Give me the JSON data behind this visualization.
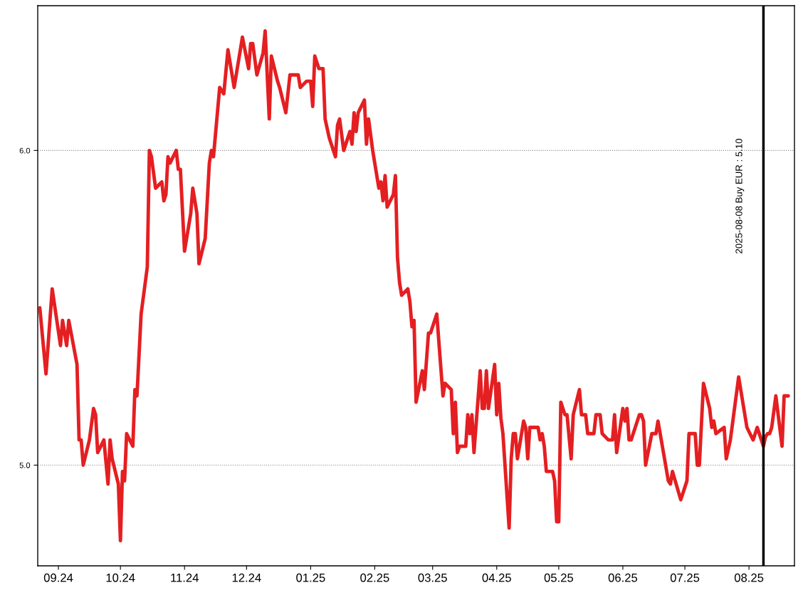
{
  "chart_data": {
    "type": "line",
    "x": [
      "2024-08-23",
      "2024-08-26",
      "2024-08-29",
      "2024-09-02",
      "2024-09-03",
      "2024-09-05",
      "2024-09-06",
      "2024-09-10",
      "2024-09-11",
      "2024-09-12",
      "2024-09-13",
      "2024-09-16",
      "2024-09-18",
      "2024-09-19",
      "2024-09-20",
      "2024-09-23",
      "2024-09-25",
      "2024-09-26",
      "2024-09-27",
      "2024-09-30",
      "2024-10-01",
      "2024-10-02",
      "2024-10-03",
      "2024-10-04",
      "2024-10-07",
      "2024-10-08",
      "2024-10-09",
      "2024-10-11",
      "2024-10-14",
      "2024-10-15",
      "2024-10-16",
      "2024-10-18",
      "2024-10-21",
      "2024-10-22",
      "2024-10-23",
      "2024-10-24",
      "2024-10-25",
      "2024-10-28",
      "2024-10-29",
      "2024-10-30",
      "2024-11-01",
      "2024-11-04",
      "2024-11-05",
      "2024-11-07",
      "2024-11-08",
      "2024-11-11",
      "2024-11-13",
      "2024-11-14",
      "2024-11-15",
      "2024-11-18",
      "2024-11-20",
      "2024-11-22",
      "2024-11-25",
      "2024-11-29",
      "2024-12-02",
      "2024-12-03",
      "2024-12-04",
      "2024-12-06",
      "2024-12-09",
      "2024-12-10",
      "2024-12-12",
      "2024-12-13",
      "2024-12-16",
      "2024-12-17",
      "2024-12-20",
      "2024-12-22",
      "2024-12-26",
      "2024-12-27",
      "2024-12-30",
      "2025-01-01",
      "2025-01-02",
      "2025-01-03",
      "2025-01-05",
      "2025-01-07",
      "2025-01-08",
      "2025-01-10",
      "2025-01-13",
      "2025-01-14",
      "2025-01-15",
      "2025-01-17",
      "2025-01-20",
      "2025-01-21",
      "2025-01-22",
      "2025-01-23",
      "2025-01-24",
      "2025-01-27",
      "2025-01-28",
      "2025-01-29",
      "2025-01-31",
      "2025-02-03",
      "2025-02-04",
      "2025-02-05",
      "2025-02-06",
      "2025-02-07",
      "2025-02-10",
      "2025-02-11",
      "2025-02-12",
      "2025-02-13",
      "2025-02-14",
      "2025-02-17",
      "2025-02-18",
      "2025-02-19",
      "2025-02-20",
      "2025-02-21",
      "2025-02-24",
      "2025-02-25",
      "2025-02-27",
      "2025-02-28",
      "2025-03-03",
      "2025-03-06",
      "2025-03-07",
      "2025-03-10",
      "2025-03-11",
      "2025-03-12",
      "2025-03-13",
      "2025-03-14",
      "2025-03-17",
      "2025-03-18",
      "2025-03-19",
      "2025-03-20",
      "2025-03-21",
      "2025-03-24",
      "2025-03-25",
      "2025-03-26",
      "2025-03-27",
      "2025-03-28",
      "2025-03-31",
      "2025-04-01",
      "2025-04-02",
      "2025-04-03",
      "2025-04-04",
      "2025-04-07",
      "2025-04-08",
      "2025-04-09",
      "2025-04-10",
      "2025-04-11",
      "2025-04-14",
      "2025-04-15",
      "2025-04-16",
      "2025-04-17",
      "2025-04-21",
      "2025-04-22",
      "2025-04-23",
      "2025-04-24",
      "2025-04-25",
      "2025-04-28",
      "2025-04-29",
      "2025-04-30",
      "2025-05-01",
      "2025-05-02",
      "2025-05-04",
      "2025-05-05",
      "2025-05-07",
      "2025-05-08",
      "2025-05-11",
      "2025-05-12",
      "2025-05-14",
      "2025-05-15",
      "2025-05-18",
      "2025-05-19",
      "2025-05-21",
      "2025-05-22",
      "2025-05-25",
      "2025-05-27",
      "2025-05-28",
      "2025-05-29",
      "2025-06-01",
      "2025-06-02",
      "2025-06-03",
      "2025-06-04",
      "2025-06-05",
      "2025-06-09",
      "2025-06-10",
      "2025-06-11",
      "2025-06-12",
      "2025-06-15",
      "2025-06-17",
      "2025-06-18",
      "2025-06-23",
      "2025-06-24",
      "2025-06-25",
      "2025-06-29",
      "2025-07-02",
      "2025-07-03",
      "2025-07-06",
      "2025-07-07",
      "2025-07-08",
      "2025-07-10",
      "2025-07-13",
      "2025-07-14",
      "2025-07-15",
      "2025-07-16",
      "2025-07-20",
      "2025-07-21",
      "2025-07-23",
      "2025-07-27",
      "2025-07-31",
      "2025-08-03",
      "2025-08-05",
      "2025-08-08",
      "2025-08-09",
      "2025-08-10",
      "2025-08-11",
      "2025-08-12",
      "2025-08-14",
      "2025-08-17",
      "2025-08-18",
      "2025-08-20"
    ],
    "series": [
      {
        "color": "#e41f22",
        "values": [
          5.5,
          5.29,
          5.56,
          5.38,
          5.46,
          5.38,
          5.46,
          5.32,
          5.08,
          5.08,
          5.0,
          5.08,
          5.18,
          5.16,
          5.04,
          5.08,
          4.94,
          5.08,
          5.02,
          4.94,
          4.76,
          4.98,
          4.95,
          5.1,
          5.06,
          5.24,
          5.22,
          5.48,
          5.63,
          6.0,
          5.98,
          5.88,
          5.9,
          5.84,
          5.86,
          5.98,
          5.96,
          6.0,
          5.94,
          5.94,
          5.68,
          5.8,
          5.88,
          5.8,
          5.64,
          5.72,
          5.96,
          6.0,
          5.98,
          6.2,
          6.18,
          6.32,
          6.2,
          6.36,
          6.26,
          6.34,
          6.34,
          6.24,
          6.31,
          6.38,
          6.1,
          6.3,
          6.22,
          6.2,
          6.12,
          6.24,
          6.24,
          6.2,
          6.22,
          6.22,
          6.14,
          6.3,
          6.26,
          6.26,
          6.1,
          6.04,
          5.98,
          6.08,
          6.1,
          6.0,
          6.06,
          6.02,
          6.12,
          6.06,
          6.12,
          6.16,
          6.02,
          6.1,
          6.0,
          5.88,
          5.9,
          5.84,
          5.92,
          5.82,
          5.86,
          5.92,
          5.66,
          5.58,
          5.54,
          5.56,
          5.52,
          5.44,
          5.46,
          5.2,
          5.3,
          5.24,
          5.42,
          5.42,
          5.48,
          5.22,
          5.26,
          5.24,
          5.1,
          5.2,
          5.04,
          5.06,
          5.06,
          5.16,
          5.1,
          5.16,
          5.04,
          5.3,
          5.18,
          5.18,
          5.3,
          5.18,
          5.32,
          5.16,
          5.26,
          5.15,
          5.1,
          4.8,
          5.02,
          5.1,
          5.1,
          5.02,
          5.14,
          5.12,
          5.02,
          5.12,
          5.12,
          5.08,
          5.1,
          5.06,
          4.98,
          4.98,
          4.95,
          4.82,
          4.82,
          5.2,
          5.16,
          5.16,
          5.02,
          5.16,
          5.24,
          5.16,
          5.16,
          5.1,
          5.1,
          5.16,
          5.16,
          5.1,
          5.08,
          5.08,
          5.16,
          5.04,
          5.18,
          5.14,
          5.18,
          5.08,
          5.08,
          5.16,
          5.16,
          5.14,
          5.0,
          5.1,
          5.1,
          5.14,
          4.95,
          4.94,
          4.98,
          4.89,
          4.95,
          5.1,
          5.1,
          5.0,
          5.0,
          5.26,
          5.18,
          5.12,
          5.14,
          5.1,
          5.12,
          5.02,
          5.08,
          5.28,
          5.12,
          5.08,
          5.12,
          5.06,
          5.09,
          5.1,
          5.1,
          5.12,
          5.22,
          5.06,
          5.22,
          5.22
        ]
      }
    ],
    "xlim": [
      "2024-08-22",
      "2025-08-23"
    ],
    "xticks": [
      {
        "value": "2024-09-01",
        "label": "09.24"
      },
      {
        "value": "2024-10-01",
        "label": "10.24"
      },
      {
        "value": "2024-11-01",
        "label": "11.24"
      },
      {
        "value": "2024-12-01",
        "label": "12.24"
      },
      {
        "value": "2025-01-01",
        "label": "01.25"
      },
      {
        "value": "2025-02-01",
        "label": "02.25"
      },
      {
        "value": "2025-03-01",
        "label": "03.25"
      },
      {
        "value": "2025-04-01",
        "label": "04.25"
      },
      {
        "value": "2025-05-01",
        "label": "05.25"
      },
      {
        "value": "2025-06-01",
        "label": "06.25"
      },
      {
        "value": "2025-07-01",
        "label": "07.25"
      },
      {
        "value": "2025-08-01",
        "label": "08.25"
      }
    ],
    "ylim": [
      4.68,
      6.46
    ],
    "yticks": [
      {
        "value": 5,
        "label": "5.0"
      },
      {
        "value": 6,
        "label": "6.0"
      }
    ],
    "grid": "y",
    "line_style": "solid",
    "ref_lines": [
      {
        "axis": "x",
        "value": "2025-08-08",
        "label": "2025-08-08 Buy EUR : 5.10",
        "color": "#000000",
        "line_style": "solid"
      }
    ]
  }
}
